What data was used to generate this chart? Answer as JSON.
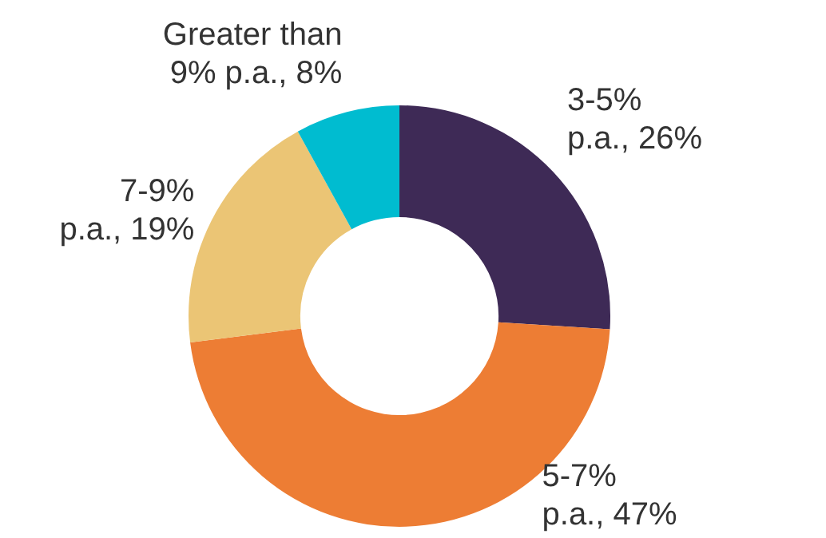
{
  "chart_data": {
    "type": "donut",
    "categories": [
      "3-5% p.a.",
      "5-7% p.a.",
      "7-9% p.a.",
      "Greater than 9% p.a."
    ],
    "values": [
      26,
      47,
      19,
      8
    ],
    "value_labels": [
      "26%",
      "47%",
      "19%",
      "8%"
    ],
    "colors": [
      "#3e2a56",
      "#ed7d34",
      "#ebc575",
      "#00bcd0"
    ],
    "legend": false
  }
}
